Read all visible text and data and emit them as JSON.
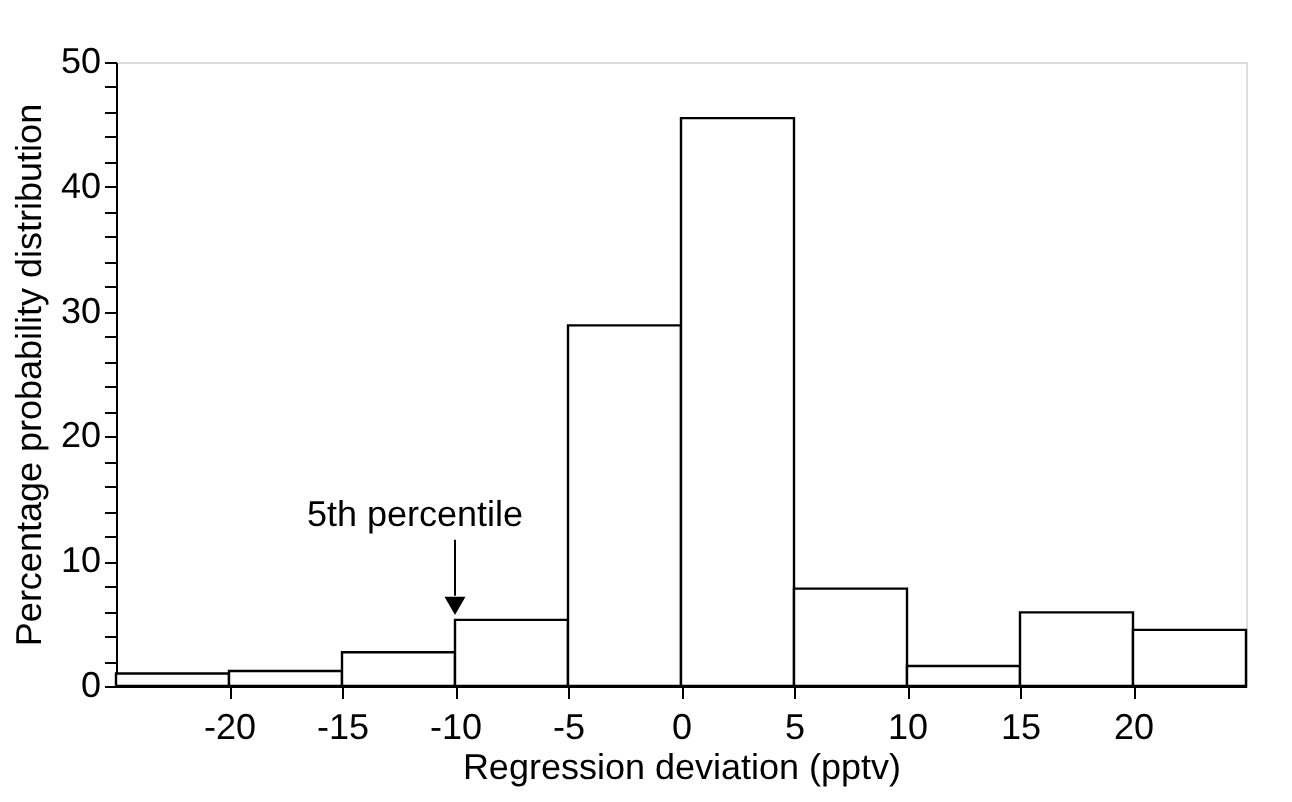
{
  "chart_data": {
    "type": "histogram",
    "xlabel": "Regression deviation (pptv)",
    "ylabel": "Percentage probability distribution",
    "bins": [
      -25,
      -20,
      -15,
      -10,
      -5,
      0,
      5,
      10,
      15,
      20,
      25
    ],
    "values": [
      1.0,
      1.2,
      2.7,
      5.3,
      28.9,
      45.5,
      7.8,
      1.6,
      5.9,
      4.5
    ],
    "color": "#ffffff",
    "xlim": [
      -25,
      25
    ],
    "xticks": [
      -20,
      -15,
      -10,
      -5,
      0,
      5,
      10,
      15,
      20
    ],
    "ylim": [
      0,
      50
    ],
    "yticks": [
      0,
      {
        "value": 2,
        "label": null
      },
      {
        "value": 4,
        "label": null
      },
      {
        "value": 6,
        "label": null
      },
      {
        "value": 8,
        "label": null
      },
      10,
      {
        "value": 12,
        "label": null
      },
      {
        "value": 14,
        "label": null
      },
      {
        "value": 16,
        "label": null
      },
      {
        "value": 18,
        "label": null
      },
      20,
      {
        "value": 22,
        "label": null
      },
      {
        "value": 24,
        "label": null
      },
      {
        "value": 26,
        "label": null
      },
      {
        "value": 28,
        "label": null
      },
      30,
      {
        "value": 32,
        "label": null
      },
      {
        "value": 34,
        "label": null
      },
      {
        "value": 36,
        "label": null
      },
      {
        "value": 38,
        "label": null
      },
      40,
      {
        "value": 42,
        "label": null
      },
      {
        "value": 44,
        "label": null
      },
      {
        "value": 46,
        "label": null
      },
      {
        "value": 48,
        "label": null
      },
      50
    ],
    "annotations": [
      {
        "text": "5th percentile",
        "x": -10,
        "y": 5.3
      }
    ],
    "grid": false,
    "legend": false
  }
}
